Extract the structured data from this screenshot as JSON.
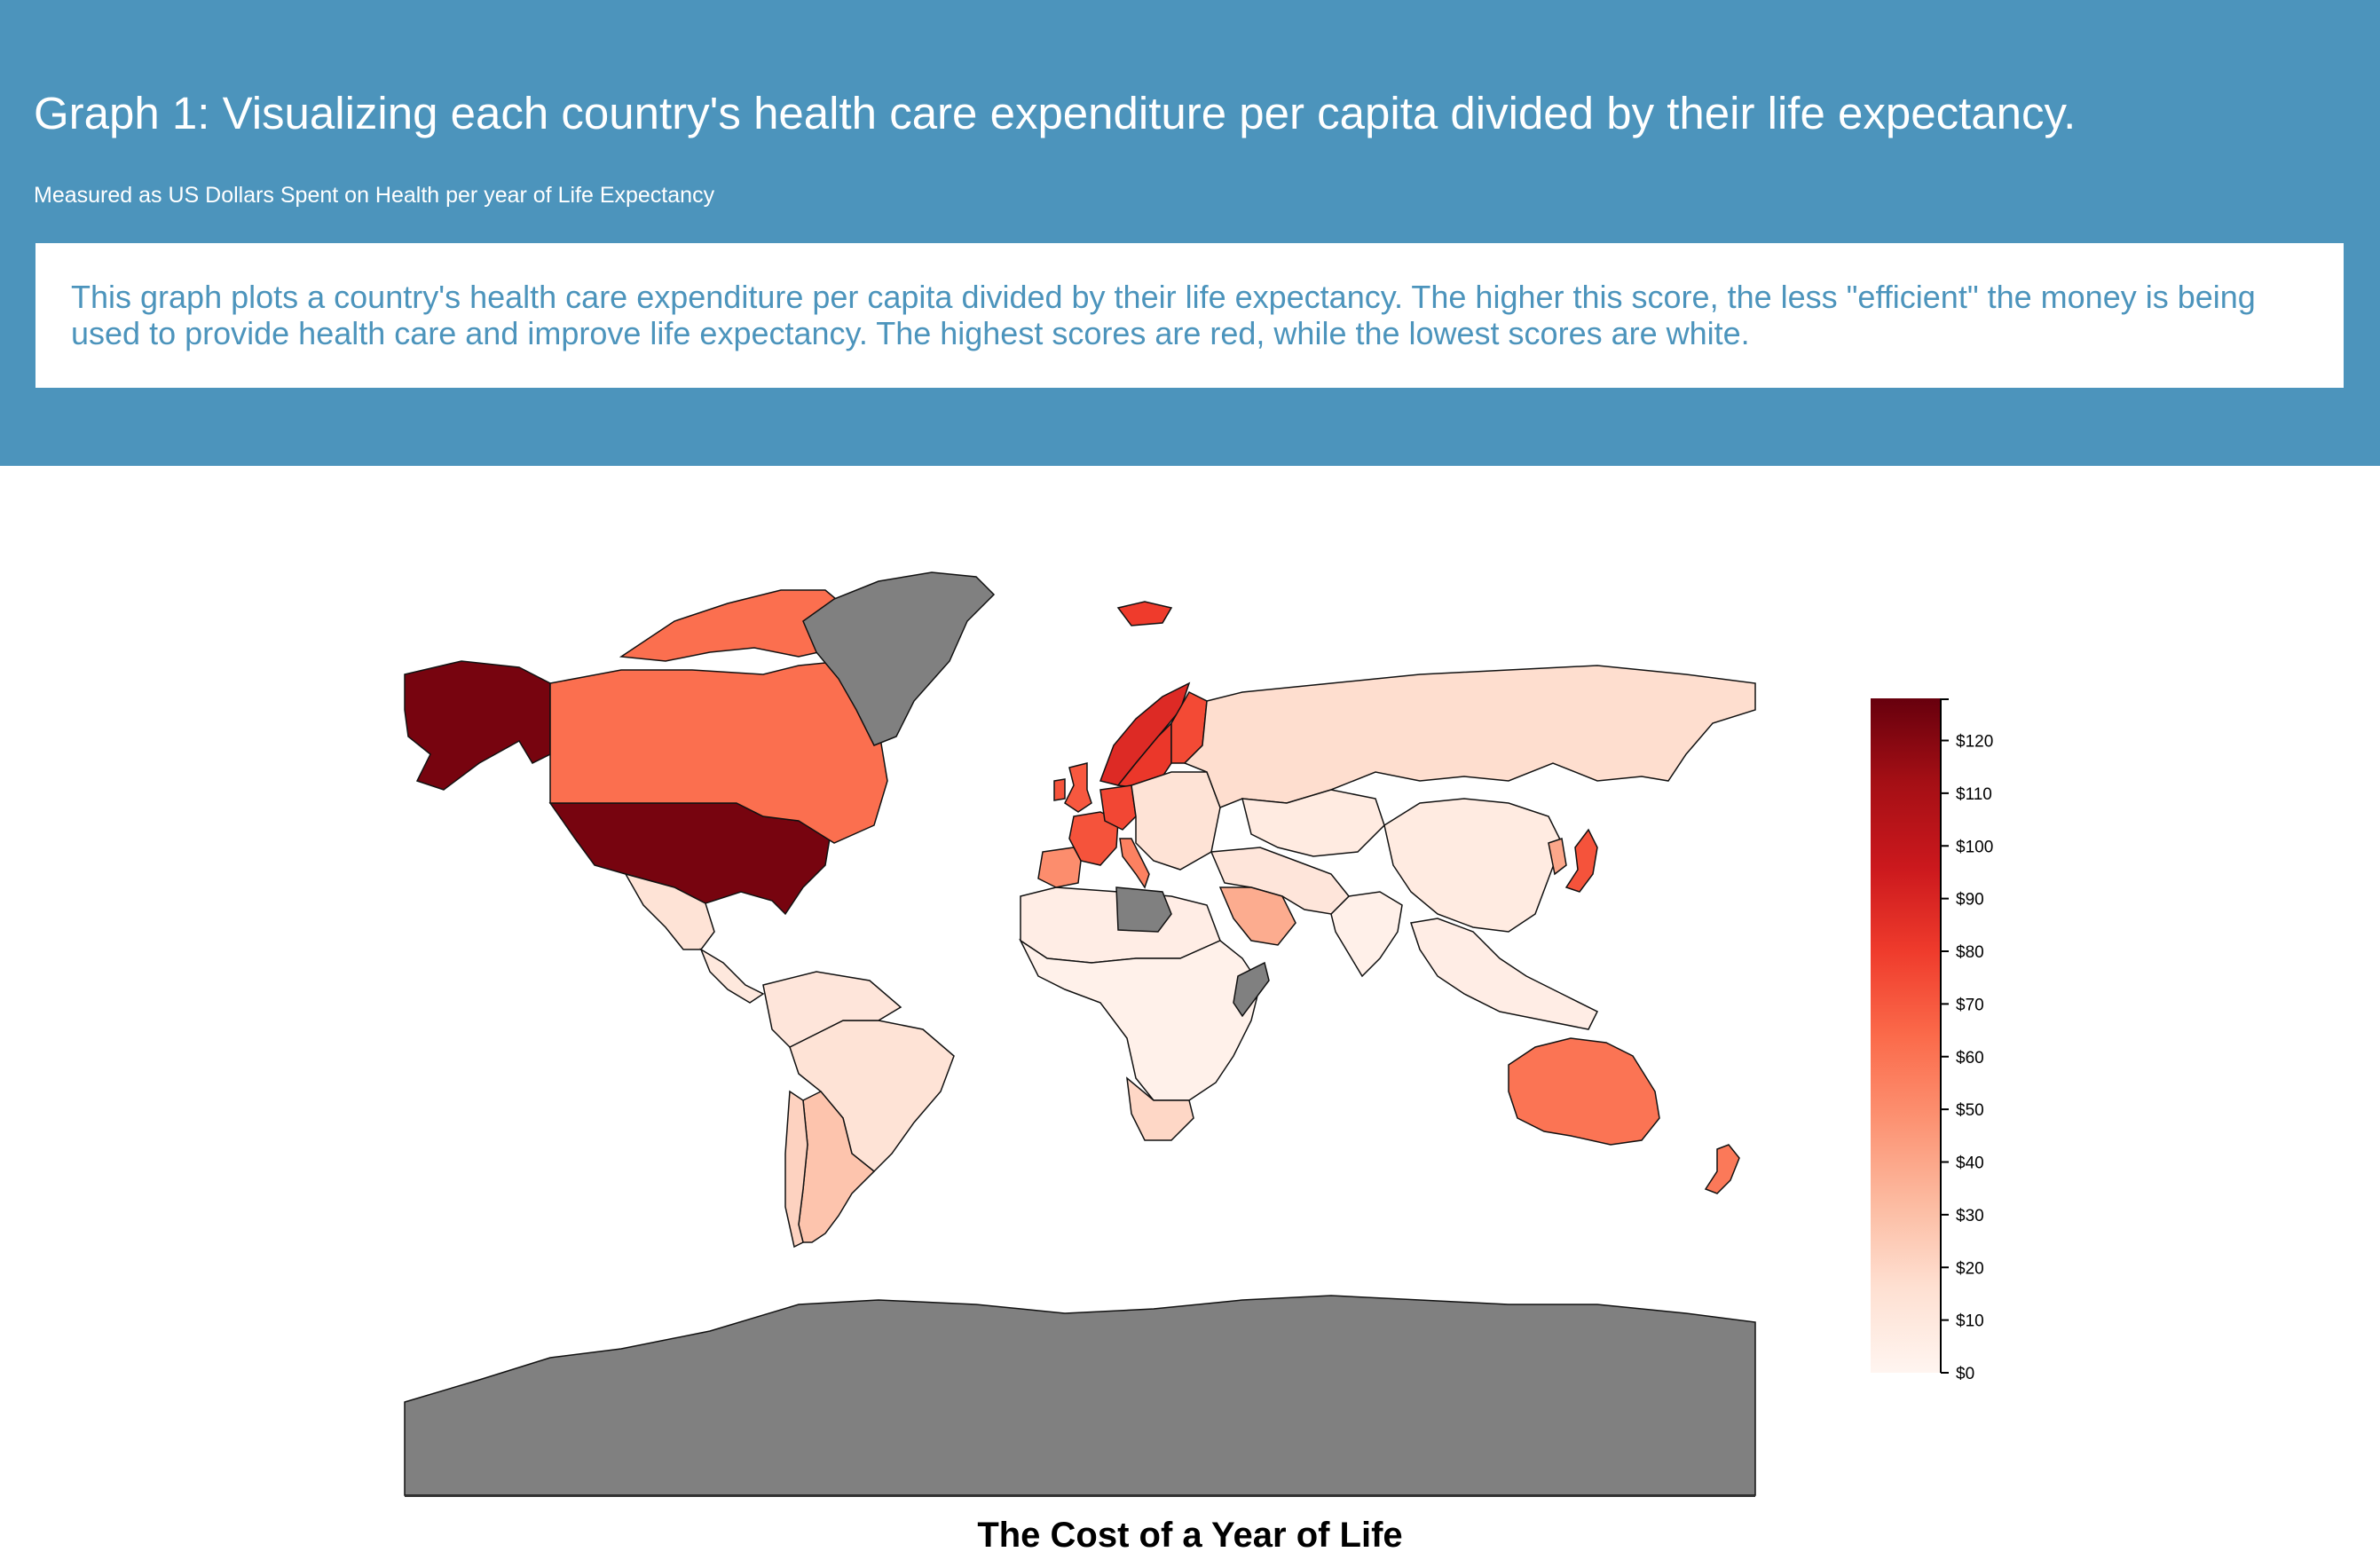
{
  "header": {
    "title": "Graph 1: Visualizing each country's health care expenditure per capita divided by their life expectancy.",
    "subtitle": "Measured as US Dollars Spent on Health per year of Life Expectancy",
    "description": "This graph plots a country's health care expenditure per capita divided by their life expectancy. The higher this score, the less \"efficient\" the money is being used to provide health care and improve life expectancy. The highest scores are red, while the lowest scores are white."
  },
  "chart_data": {
    "type": "choropleth",
    "title": "The Cost of a Year of Life",
    "projection": "mercator",
    "colorscale": {
      "name": "Reds",
      "low_color": "#fff5f0",
      "high_color": "#67000d",
      "no_data_color": "#808080",
      "range": [
        0,
        128
      ],
      "ticks": [
        0,
        10,
        20,
        30,
        40,
        50,
        60,
        70,
        80,
        90,
        100,
        110,
        120
      ],
      "tick_labels": [
        "$0",
        "$10",
        "$20",
        "$30",
        "$40",
        "$50",
        "$60",
        "$70",
        "$80",
        "$90",
        "$100",
        "$110",
        "$120"
      ],
      "legend_position": "right"
    },
    "regions": [
      {
        "id": "usa",
        "value": 124
      },
      {
        "id": "alaska",
        "value": 124
      },
      {
        "id": "canada",
        "value": 62
      },
      {
        "id": "canada-arctic",
        "value": 62
      },
      {
        "id": "mexico",
        "value": 14
      },
      {
        "id": "central-america",
        "value": 10
      },
      {
        "id": "brazil",
        "value": 14
      },
      {
        "id": "south-america-north",
        "value": 12
      },
      {
        "id": "argentina",
        "value": 28
      },
      {
        "id": "chile",
        "value": 22
      },
      {
        "id": "norway",
        "value": 88
      },
      {
        "id": "sweden",
        "value": 82
      },
      {
        "id": "finland",
        "value": 75
      },
      {
        "id": "iceland",
        "value": 80
      },
      {
        "id": "uk",
        "value": 70
      },
      {
        "id": "ireland",
        "value": 72
      },
      {
        "id": "france",
        "value": 72
      },
      {
        "id": "germany",
        "value": 76
      },
      {
        "id": "spain",
        "value": 50
      },
      {
        "id": "italy",
        "value": 55
      },
      {
        "id": "eastern-europe",
        "value": 14
      },
      {
        "id": "russia",
        "value": 17
      },
      {
        "id": "central-asia",
        "value": 8
      },
      {
        "id": "china",
        "value": 8
      },
      {
        "id": "japan",
        "value": 72
      },
      {
        "id": "korea",
        "value": 40
      },
      {
        "id": "india",
        "value": 4
      },
      {
        "id": "southeast-asia",
        "value": 6
      },
      {
        "id": "middle-east",
        "value": 12
      },
      {
        "id": "saudi-arabia",
        "value": 38
      },
      {
        "id": "north-africa",
        "value": 6
      },
      {
        "id": "sub-saharan-africa",
        "value": 3
      },
      {
        "id": "southern-africa",
        "value": 20
      },
      {
        "id": "australia",
        "value": 60
      },
      {
        "id": "new-zealand",
        "value": 58
      },
      {
        "id": "greenland",
        "value": null
      },
      {
        "id": "antarctica",
        "value": null
      },
      {
        "id": "libya",
        "value": null
      },
      {
        "id": "somalia",
        "value": null
      }
    ]
  }
}
